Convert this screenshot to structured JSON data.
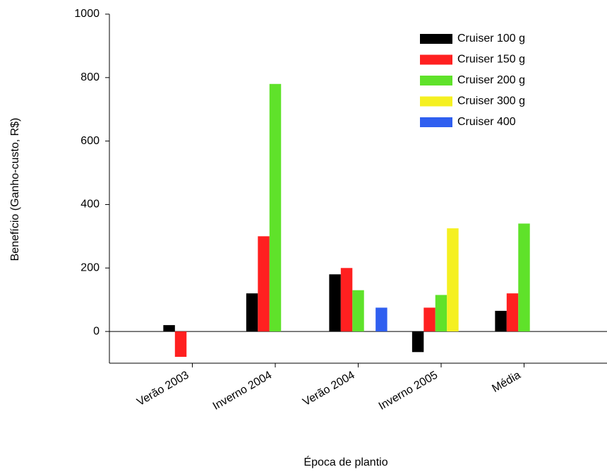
{
  "chart_data": {
    "type": "bar",
    "x_label": "Época de plantio",
    "y_label": "Benefício (Ganho-custo, R$)",
    "categories": [
      "Verão 2003",
      "Inverno 2004",
      "Verão 2004",
      "Inverno 2005",
      "Média"
    ],
    "series": [
      {
        "name": "Cruiser 100 g",
        "color": "#000000",
        "values": [
          20,
          120,
          180,
          -65,
          65
        ]
      },
      {
        "name": "Cruiser 150 g",
        "color": "#ff2020",
        "values": [
          -80,
          300,
          200,
          75,
          120
        ]
      },
      {
        "name": "Cruiser 200 g",
        "color": "#5fe22a",
        "values": [
          null,
          780,
          130,
          115,
          340
        ]
      },
      {
        "name": "Cruiser 300 g",
        "color": "#f5f020",
        "values": [
          null,
          null,
          null,
          325,
          null
        ]
      },
      {
        "name": "Cruiser 400",
        "color": "#2f5ff0",
        "values": [
          null,
          null,
          75,
          null,
          null
        ]
      }
    ],
    "ylim": [
      -100,
      1000
    ],
    "yticks": [
      0,
      200,
      400,
      600,
      800,
      1000
    ],
    "legend": "upper-right"
  }
}
